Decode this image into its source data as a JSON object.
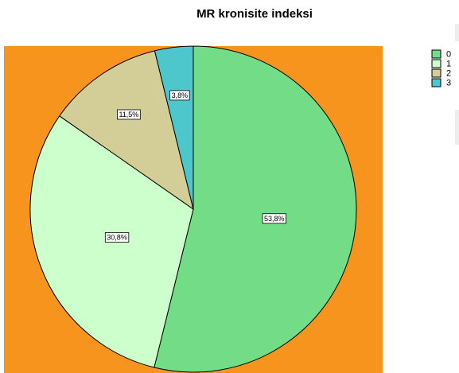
{
  "chart_data": {
    "type": "pie",
    "title": "MR kronisite indeksi",
    "categories": [
      "0",
      "1",
      "2",
      "3"
    ],
    "values": [
      53.8,
      30.8,
      11.5,
      3.8
    ],
    "value_labels": [
      "53,8%",
      "30,8%",
      "11,5%",
      "3,8%"
    ],
    "colors": [
      "#72dd86",
      "#ccffcc",
      "#d3cd98",
      "#4ec7cc"
    ],
    "background": "#f7941d",
    "legend": "right"
  }
}
